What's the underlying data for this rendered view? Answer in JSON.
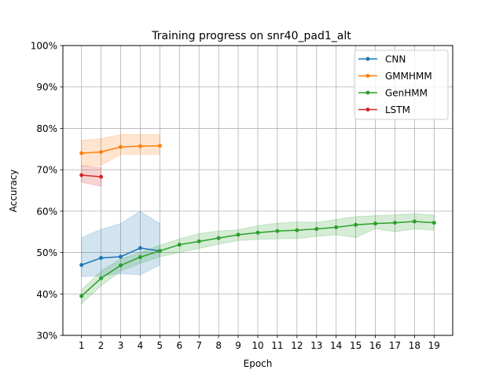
{
  "chart_data": {
    "type": "line",
    "title": "Training progress on snr40_pad1_alt",
    "xlabel": "Epoch",
    "ylabel": "Accuracy",
    "xlim": [
      0.05,
      19.95
    ],
    "ylim": [
      30,
      100
    ],
    "x_ticks": [
      1,
      2,
      3,
      4,
      5,
      6,
      7,
      8,
      9,
      10,
      11,
      12,
      13,
      14,
      15,
      16,
      17,
      18,
      19
    ],
    "y_ticks": [
      30,
      40,
      50,
      60,
      70,
      80,
      90,
      100
    ],
    "y_tick_labels": [
      "30%",
      "40%",
      "50%",
      "60%",
      "70%",
      "80%",
      "90%",
      "100%"
    ],
    "grid": true,
    "legend_position": "top-right",
    "series": [
      {
        "name": "CNN",
        "color": "#1f77b4",
        "x": [
          1,
          2,
          3,
          4,
          5
        ],
        "y": [
          47.0,
          48.7,
          49.0,
          51.1,
          50.4
        ],
        "upper": [
          53.6,
          55.6,
          57.0,
          60.0,
          57.0
        ],
        "lower": [
          44.2,
          44.4,
          44.9,
          44.6,
          47.0
        ]
      },
      {
        "name": "GMMHMM",
        "color": "#ff7f0e",
        "x": [
          1,
          2,
          3,
          4,
          5
        ],
        "y": [
          74.0,
          74.3,
          75.5,
          75.7,
          75.8
        ],
        "upper": [
          77.1,
          77.5,
          78.5,
          78.5,
          78.5
        ],
        "lower": [
          70.9,
          71.1,
          73.7,
          73.7,
          73.7
        ]
      },
      {
        "name": "GenHMM",
        "color": "#2ca02c",
        "x": [
          1,
          2,
          3,
          4,
          5,
          6,
          7,
          8,
          9,
          10,
          11,
          12,
          13,
          14,
          15,
          16,
          17,
          18,
          19
        ],
        "y": [
          39.5,
          43.8,
          46.9,
          48.9,
          50.4,
          51.9,
          52.7,
          53.5,
          54.3,
          54.8,
          55.2,
          55.4,
          55.7,
          56.1,
          56.7,
          57.0,
          57.2,
          57.5,
          57.2
        ],
        "upper": [
          41.0,
          45.5,
          48.5,
          50.0,
          51.8,
          53.3,
          54.6,
          55.2,
          55.5,
          56.5,
          57.1,
          57.4,
          57.3,
          58.0,
          58.7,
          58.9,
          59.1,
          59.4,
          59.0
        ],
        "lower": [
          37.6,
          42.0,
          45.5,
          47.4,
          49.0,
          50.0,
          51.0,
          52.0,
          52.9,
          53.2,
          53.3,
          53.4,
          53.9,
          54.3,
          53.6,
          55.8,
          55.0,
          55.7,
          55.4
        ]
      },
      {
        "name": "LSTM",
        "color": "#d62728",
        "x": [
          1,
          2
        ],
        "y": [
          68.7,
          68.3
        ],
        "upper": [
          71.0,
          70.5
        ],
        "lower": [
          67.0,
          66.0
        ]
      }
    ]
  }
}
